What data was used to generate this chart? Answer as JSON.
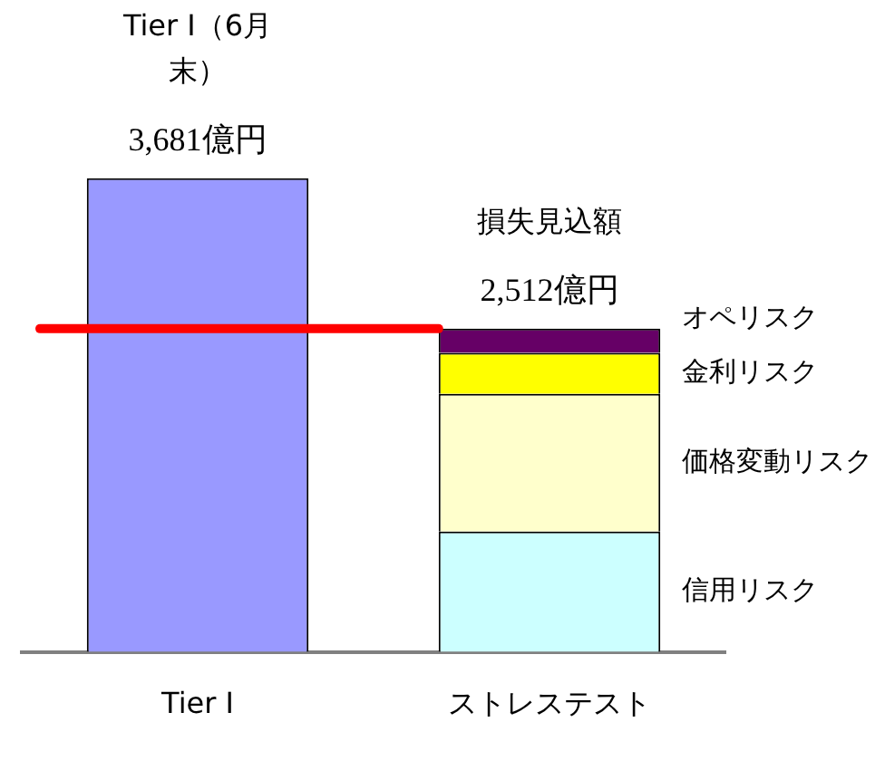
{
  "chart_data": {
    "type": "bar",
    "stacked": true,
    "categories": [
      "Tier Ⅰ",
      "ストレステスト"
    ],
    "series": [
      {
        "color": "#9999ff",
        "values": [
          3681,
          null
        ],
        "value_labels": [
          "3,681億円",
          null
        ]
      },
      {
        "name": "信用リスク",
        "color": "#ccffff",
        "values": [
          null,
          935
        ]
      },
      {
        "name": "価格変動リスク",
        "color": "#ffffcc",
        "values": [
          null,
          1070
        ]
      },
      {
        "name": "金利リスク",
        "color": "#ffff00",
        "values": [
          null,
          320
        ]
      },
      {
        "name": "オペリスク",
        "color": "#660066",
        "values": [
          null,
          187
        ]
      }
    ],
    "totals": [
      null,
      "2,512億円"
    ],
    "annotations": [
      "Tier Ⅰ（6月末）",
      "損失見込額"
    ],
    "ref_lines": [
      {
        "axis": "y",
        "value": 2512,
        "color": "#ff0000"
      }
    ]
  }
}
